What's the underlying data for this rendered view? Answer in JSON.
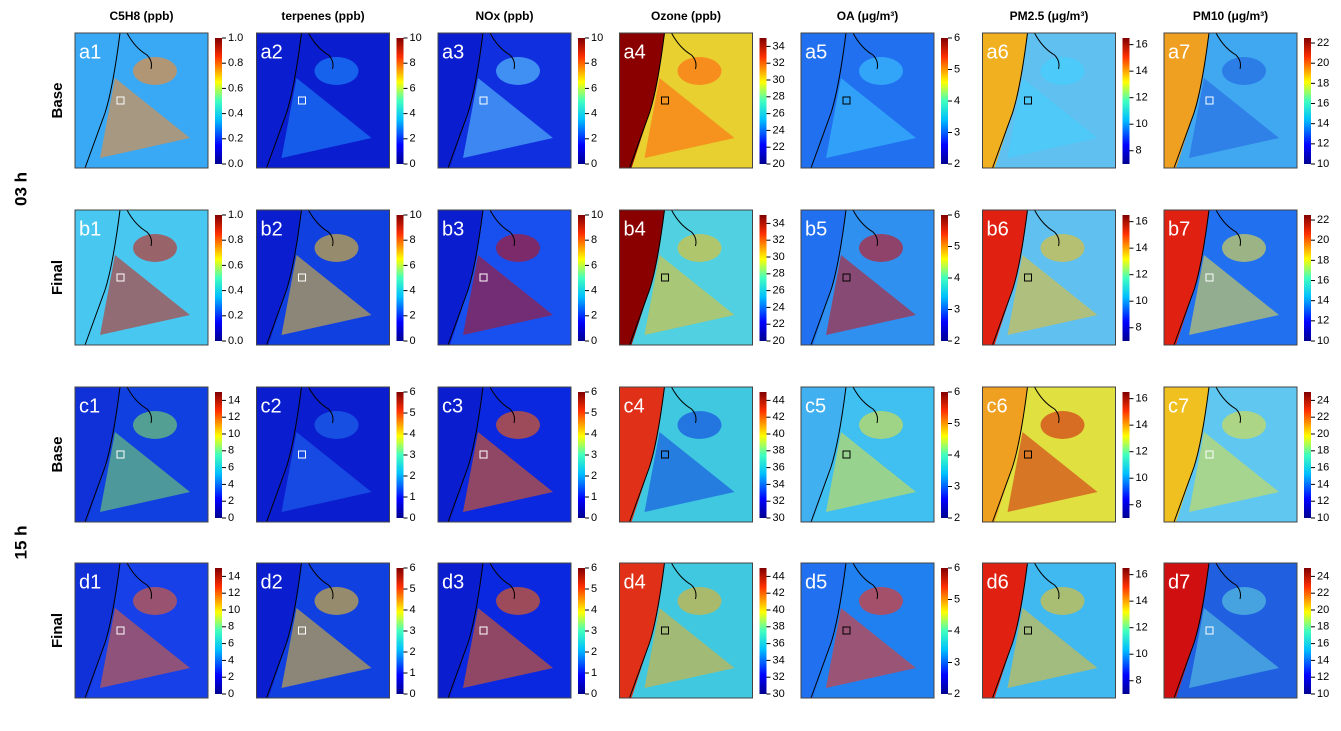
{
  "columns": [
    {
      "header": "C5H8 (ppb)"
    },
    {
      "header": "terpenes (ppb)"
    },
    {
      "header": "NOx (ppb)"
    },
    {
      "header": "Ozone (ppb)"
    },
    {
      "header": "OA (μg/m³)"
    },
    {
      "header": "PM2.5 (μg/m³)"
    },
    {
      "header": "PM10 (μg/m³)"
    }
  ],
  "hours": [
    {
      "label": "03 h",
      "rows": [
        {
          "label": "Base",
          "panels": [
            {
              "label": "a1",
              "lim": [
                0,
                1
              ],
              "ticks": [
                {
                  "value": 0,
                  "label": "0.0"
                },
                0.2,
                0.4,
                0.6,
                0.8,
                {
                  "value": 1,
                  "label": "1.0"
                }
              ]
            },
            {
              "label": "a2",
              "lim": [
                0,
                10
              ],
              "ticks": [
                0,
                2,
                4,
                6,
                8,
                10
              ]
            },
            {
              "label": "a3",
              "lim": [
                0,
                10
              ],
              "ticks": [
                0,
                2,
                4,
                6,
                8,
                10
              ]
            },
            {
              "label": "a4",
              "lim": [
                20,
                35
              ],
              "ticks": [
                20,
                22,
                24,
                26,
                28,
                30,
                32,
                34
              ]
            },
            {
              "label": "a5",
              "lim": [
                2,
                6
              ],
              "ticks": [
                2,
                3,
                4,
                5,
                6
              ]
            },
            {
              "label": "a6",
              "lim": [
                7,
                16.5
              ],
              "ticks": [
                8,
                10,
                12,
                14,
                16
              ]
            },
            {
              "label": "a7",
              "lim": [
                10,
                22.5
              ],
              "ticks": [
                10,
                12,
                14,
                16,
                18,
                20,
                22
              ]
            }
          ]
        },
        {
          "label": "Final",
          "panels": [
            {
              "label": "b1",
              "lim": [
                0,
                1
              ],
              "ticks": [
                {
                  "value": 0,
                  "label": "0.0"
                },
                0.2,
                0.4,
                0.6,
                0.8,
                {
                  "value": 1,
                  "label": "1.0"
                }
              ]
            },
            {
              "label": "b2",
              "lim": [
                0,
                10
              ],
              "ticks": [
                0,
                2,
                4,
                6,
                8,
                10
              ]
            },
            {
              "label": "b3",
              "lim": [
                0,
                10
              ],
              "ticks": [
                0,
                2,
                4,
                6,
                8,
                10
              ]
            },
            {
              "label": "b4",
              "lim": [
                20,
                35
              ],
              "ticks": [
                20,
                22,
                24,
                26,
                28,
                30,
                32,
                34
              ]
            },
            {
              "label": "b5",
              "lim": [
                2,
                6
              ],
              "ticks": [
                2,
                3,
                4,
                5,
                6
              ]
            },
            {
              "label": "b6",
              "lim": [
                7,
                16.5
              ],
              "ticks": [
                8,
                10,
                12,
                14,
                16
              ]
            },
            {
              "label": "b7",
              "lim": [
                10,
                22.5
              ],
              "ticks": [
                10,
                12,
                14,
                16,
                18,
                20,
                22
              ]
            }
          ]
        }
      ]
    },
    {
      "label": "15 h",
      "rows": [
        {
          "label": "Base",
          "panels": [
            {
              "label": "c1",
              "lim": [
                0,
                15
              ],
              "ticks": [
                0,
                2,
                4,
                6,
                8,
                10,
                12,
                14
              ]
            },
            {
              "label": "c2",
              "lim": [
                0,
                6
              ],
              "ticks": [
                0,
                1,
                2,
                3,
                4,
                5,
                6
              ]
            },
            {
              "label": "c3",
              "lim": [
                0,
                6
              ],
              "ticks": [
                0,
                1,
                2,
                3,
                4,
                5,
                6
              ]
            },
            {
              "label": "c4",
              "lim": [
                30,
                45
              ],
              "ticks": [
                30,
                32,
                34,
                36,
                38,
                40,
                42,
                44
              ]
            },
            {
              "label": "c5",
              "lim": [
                2,
                6
              ],
              "ticks": [
                2,
                3,
                4,
                5,
                6
              ]
            },
            {
              "label": "c6",
              "lim": [
                7,
                16.5
              ],
              "ticks": [
                8,
                10,
                12,
                14,
                16
              ]
            },
            {
              "label": "c7",
              "lim": [
                10,
                25
              ],
              "ticks": [
                10,
                12,
                14,
                16,
                18,
                20,
                22,
                24
              ]
            }
          ]
        },
        {
          "label": "Final",
          "panels": [
            {
              "label": "d1",
              "lim": [
                0,
                15
              ],
              "ticks": [
                0,
                2,
                4,
                6,
                8,
                10,
                12,
                14
              ]
            },
            {
              "label": "d2",
              "lim": [
                0,
                6
              ],
              "ticks": [
                0,
                1,
                2,
                3,
                4,
                5,
                6
              ]
            },
            {
              "label": "d3",
              "lim": [
                0,
                6
              ],
              "ticks": [
                0,
                1,
                2,
                3,
                4,
                5,
                6
              ]
            },
            {
              "label": "d4",
              "lim": [
                30,
                45
              ],
              "ticks": [
                30,
                32,
                34,
                36,
                38,
                40,
                42,
                44
              ]
            },
            {
              "label": "d5",
              "lim": [
                2,
                6
              ],
              "ticks": [
                2,
                3,
                4,
                5,
                6
              ]
            },
            {
              "label": "d6",
              "lim": [
                7,
                16.5
              ],
              "ticks": [
                8,
                10,
                12,
                14,
                16
              ]
            },
            {
              "label": "d7",
              "lim": [
                10,
                25
              ],
              "ticks": [
                10,
                12,
                14,
                16,
                18,
                20,
                22,
                24
              ]
            }
          ]
        }
      ]
    }
  ]
}
